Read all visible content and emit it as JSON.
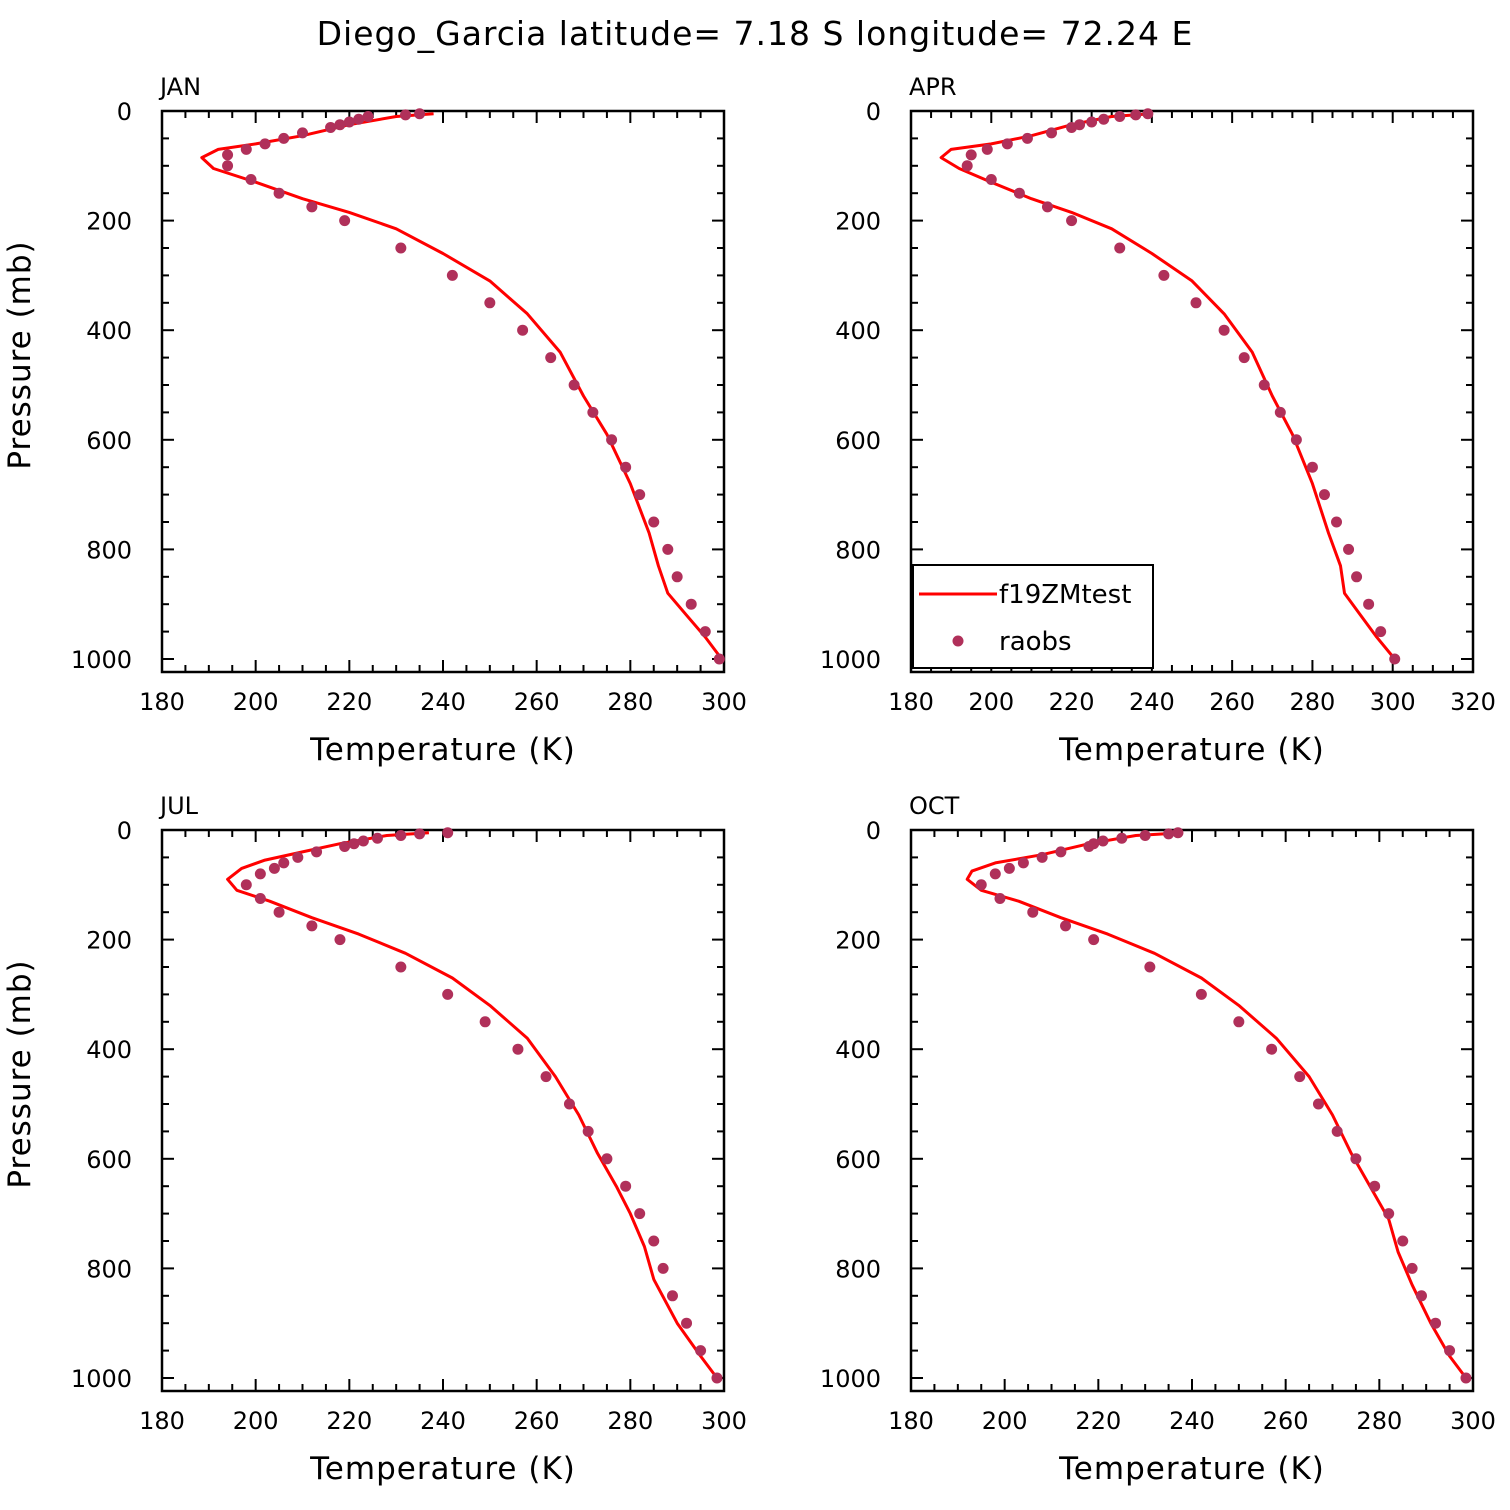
{
  "figure_title": "Diego_Garcia  latitude= 7.18 S longitude= 72.24 E",
  "colors": {
    "model": "#ff0000",
    "obs": "#b0305a",
    "axes": "#000000"
  },
  "legend": {
    "model_label": "f19ZMtest",
    "obs_label": "raobs",
    "panel": "APR",
    "placement": "bottom-left"
  },
  "chart_data": [
    {
      "type": "line",
      "title": "JAN",
      "xlabel": "Temperature (K)",
      "ylabel": "Pressure (mb)",
      "xlim": [
        180,
        300
      ],
      "ylim": [
        1000,
        0
      ],
      "xticks": [
        180,
        200,
        220,
        240,
        260,
        280,
        300
      ],
      "yticks": [
        0,
        200,
        400,
        600,
        800,
        1000
      ],
      "series": [
        {
          "name": "f19ZMtest",
          "kind": "line",
          "x": [
            238,
            230,
            220,
            210,
            200,
            192,
            188.5,
            191,
            200,
            210,
            220,
            230,
            240,
            250,
            258,
            265,
            270,
            275,
            280,
            284,
            286,
            288,
            292,
            296,
            299.5
          ],
          "y": [
            5,
            10,
            25,
            45,
            60,
            70,
            85,
            105,
            130,
            160,
            185,
            215,
            260,
            310,
            370,
            440,
            520,
            590,
            680,
            770,
            830,
            880,
            920,
            960,
            1000
          ]
        },
        {
          "name": "raobs",
          "kind": "scatter",
          "x": [
            235,
            232,
            224,
            222,
            220,
            218,
            216,
            210,
            206,
            202,
            198,
            194,
            194,
            199,
            205,
            212,
            219,
            231,
            242,
            250,
            257,
            263,
            268,
            272,
            276,
            279,
            282,
            285,
            288,
            290,
            293,
            296,
            299
          ],
          "y": [
            5,
            7,
            10,
            15,
            20,
            25,
            30,
            40,
            50,
            60,
            70,
            80,
            100,
            125,
            150,
            175,
            200,
            250,
            300,
            350,
            400,
            450,
            500,
            550,
            600,
            650,
            700,
            750,
            800,
            850,
            900,
            950,
            1000
          ]
        }
      ]
    },
    {
      "type": "line",
      "title": "APR",
      "xlabel": "Temperature (K)",
      "ylabel": "",
      "xlim": [
        180,
        320
      ],
      "ylim": [
        1000,
        0
      ],
      "xticks": [
        180,
        200,
        220,
        240,
        260,
        280,
        300,
        320
      ],
      "yticks": [
        0,
        200,
        400,
        600,
        800,
        1000
      ],
      "series": [
        {
          "name": "f19ZMtest",
          "kind": "line",
          "x": [
            240,
            230,
            220,
            210,
            200,
            190,
            187.5,
            192,
            200,
            210,
            220,
            230,
            240,
            250,
            258,
            265,
            270,
            275,
            280,
            284,
            287,
            288,
            292,
            296,
            300.5
          ],
          "y": [
            5,
            10,
            25,
            45,
            60,
            70,
            85,
            105,
            130,
            160,
            185,
            215,
            260,
            310,
            370,
            440,
            520,
            590,
            680,
            770,
            830,
            880,
            920,
            960,
            1000
          ]
        },
        {
          "name": "raobs",
          "kind": "scatter",
          "x": [
            239,
            236,
            232,
            228,
            225,
            222,
            220,
            215,
            209,
            204,
            199,
            195,
            194,
            200,
            207,
            214,
            220,
            232,
            243,
            251,
            258,
            263,
            268,
            272,
            276,
            280,
            283,
            286,
            289,
            291,
            294,
            297,
            300.5
          ],
          "y": [
            5,
            7,
            10,
            15,
            20,
            25,
            30,
            40,
            50,
            60,
            70,
            80,
            100,
            125,
            150,
            175,
            200,
            250,
            300,
            350,
            400,
            450,
            500,
            550,
            600,
            650,
            700,
            750,
            800,
            850,
            900,
            950,
            1000
          ]
        }
      ]
    },
    {
      "type": "line",
      "title": "JUL",
      "xlabel": "Temperature (K)",
      "ylabel": "Pressure (mb)",
      "xlim": [
        180,
        300
      ],
      "ylim": [
        1000,
        0
      ],
      "xticks": [
        180,
        200,
        220,
        240,
        260,
        280,
        300
      ],
      "yticks": [
        0,
        200,
        400,
        600,
        800,
        1000
      ],
      "series": [
        {
          "name": "f19ZMtest",
          "kind": "line",
          "x": [
            237,
            228,
            218,
            210,
            202,
            197,
            194,
            196,
            203,
            212,
            222,
            232,
            242,
            250,
            258,
            264,
            269,
            273,
            277,
            280,
            283,
            285,
            290,
            295,
            298.5
          ],
          "y": [
            5,
            10,
            25,
            40,
            55,
            70,
            90,
            110,
            130,
            160,
            190,
            225,
            270,
            320,
            380,
            450,
            520,
            590,
            650,
            700,
            760,
            820,
            900,
            960,
            1000
          ]
        },
        {
          "name": "raobs",
          "kind": "scatter",
          "x": [
            241,
            235,
            231,
            226,
            223,
            221,
            219,
            213,
            209,
            206,
            204,
            201,
            198,
            201,
            205,
            212,
            218,
            231,
            241,
            249,
            256,
            262,
            267,
            271,
            275,
            279,
            282,
            285,
            287,
            289,
            292,
            295,
            298.5
          ],
          "y": [
            5,
            7,
            10,
            15,
            20,
            25,
            30,
            40,
            50,
            60,
            70,
            80,
            100,
            125,
            150,
            175,
            200,
            250,
            300,
            350,
            400,
            450,
            500,
            550,
            600,
            650,
            700,
            750,
            800,
            850,
            900,
            950,
            1000
          ]
        }
      ]
    },
    {
      "type": "line",
      "title": "OCT",
      "xlabel": "Temperature (K)",
      "ylabel": "",
      "xlim": [
        180,
        300
      ],
      "ylim": [
        1000,
        0
      ],
      "xticks": [
        180,
        200,
        220,
        240,
        260,
        280,
        300
      ],
      "yticks": [
        0,
        200,
        400,
        600,
        800,
        1000
      ],
      "series": [
        {
          "name": "f19ZMtest",
          "kind": "line",
          "x": [
            238,
            228,
            218,
            208,
            198,
            193,
            192,
            195,
            203,
            212,
            222,
            232,
            242,
            250,
            258,
            265,
            270,
            274,
            278,
            282,
            284,
            287,
            291,
            295,
            298.5
          ],
          "y": [
            5,
            10,
            25,
            45,
            60,
            75,
            90,
            110,
            130,
            160,
            190,
            225,
            270,
            320,
            380,
            450,
            520,
            590,
            650,
            710,
            770,
            830,
            900,
            960,
            1000
          ]
        },
        {
          "name": "raobs",
          "kind": "scatter",
          "x": [
            237,
            235,
            230,
            225,
            221,
            219,
            218,
            212,
            208,
            204,
            201,
            198,
            195,
            199,
            206,
            213,
            219,
            231,
            242,
            250,
            257,
            263,
            267,
            271,
            275,
            279,
            282,
            285,
            287,
            289,
            292,
            295,
            298.5
          ],
          "y": [
            5,
            7,
            10,
            15,
            20,
            25,
            30,
            40,
            50,
            60,
            70,
            80,
            100,
            125,
            150,
            175,
            200,
            250,
            300,
            350,
            400,
            450,
            500,
            550,
            600,
            650,
            700,
            750,
            800,
            850,
            900,
            950,
            1000
          ]
        }
      ]
    }
  ]
}
